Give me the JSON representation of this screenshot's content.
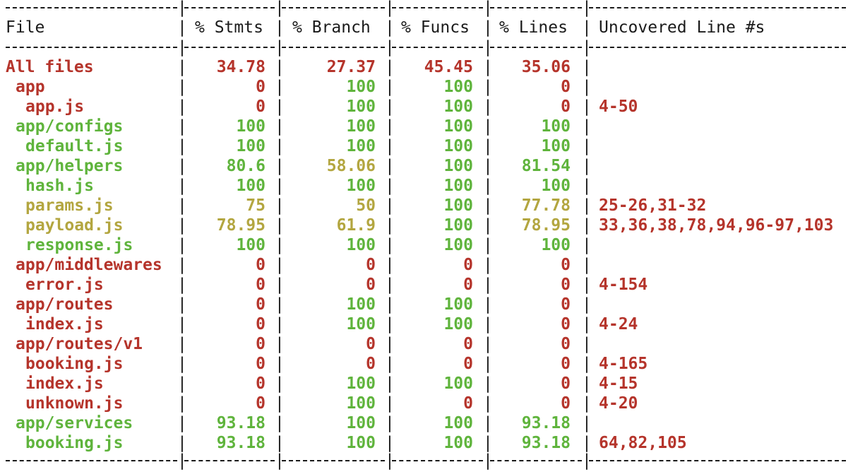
{
  "header": {
    "file": "File",
    "stmts": "% Stmts",
    "branch": "% Branch",
    "funcs": "% Funcs",
    "lines": "% Lines",
    "uncovered": "Uncovered Line #s"
  },
  "colors": {
    "red": "#b5342b",
    "green": "#5fb43c",
    "yellow": "#b3a640",
    "text": "#1a1a1a",
    "background": "#ffffff"
  },
  "rows": [
    {
      "file": "All files",
      "indent": 0,
      "file_color": "red",
      "stmts": "34.78",
      "stmts_color": "red",
      "branch": "27.37",
      "branch_color": "red",
      "funcs": "45.45",
      "funcs_color": "red",
      "lines": "35.06",
      "lines_color": "red",
      "uncovered": ""
    },
    {
      "file": "app",
      "indent": 1,
      "file_color": "red",
      "stmts": "0",
      "stmts_color": "red",
      "branch": "100",
      "branch_color": "green",
      "funcs": "100",
      "funcs_color": "green",
      "lines": "0",
      "lines_color": "red",
      "uncovered": ""
    },
    {
      "file": "app.js",
      "indent": 2,
      "file_color": "red",
      "stmts": "0",
      "stmts_color": "red",
      "branch": "100",
      "branch_color": "green",
      "funcs": "100",
      "funcs_color": "green",
      "lines": "0",
      "lines_color": "red",
      "uncovered": "4-50"
    },
    {
      "file": "app/configs",
      "indent": 1,
      "file_color": "green",
      "stmts": "100",
      "stmts_color": "green",
      "branch": "100",
      "branch_color": "green",
      "funcs": "100",
      "funcs_color": "green",
      "lines": "100",
      "lines_color": "green",
      "uncovered": ""
    },
    {
      "file": "default.js",
      "indent": 2,
      "file_color": "green",
      "stmts": "100",
      "stmts_color": "green",
      "branch": "100",
      "branch_color": "green",
      "funcs": "100",
      "funcs_color": "green",
      "lines": "100",
      "lines_color": "green",
      "uncovered": ""
    },
    {
      "file": "app/helpers",
      "indent": 1,
      "file_color": "green",
      "stmts": "80.6",
      "stmts_color": "green",
      "branch": "58.06",
      "branch_color": "yellow",
      "funcs": "100",
      "funcs_color": "green",
      "lines": "81.54",
      "lines_color": "green",
      "uncovered": ""
    },
    {
      "file": "hash.js",
      "indent": 2,
      "file_color": "green",
      "stmts": "100",
      "stmts_color": "green",
      "branch": "100",
      "branch_color": "green",
      "funcs": "100",
      "funcs_color": "green",
      "lines": "100",
      "lines_color": "green",
      "uncovered": ""
    },
    {
      "file": "params.js",
      "indent": 2,
      "file_color": "yellow",
      "stmts": "75",
      "stmts_color": "yellow",
      "branch": "50",
      "branch_color": "yellow",
      "funcs": "100",
      "funcs_color": "green",
      "lines": "77.78",
      "lines_color": "yellow",
      "uncovered": "25-26,31-32"
    },
    {
      "file": "payload.js",
      "indent": 2,
      "file_color": "yellow",
      "stmts": "78.95",
      "stmts_color": "yellow",
      "branch": "61.9",
      "branch_color": "yellow",
      "funcs": "100",
      "funcs_color": "green",
      "lines": "78.95",
      "lines_color": "yellow",
      "uncovered": "33,36,38,78,94,96-97,103"
    },
    {
      "file": "response.js",
      "indent": 2,
      "file_color": "green",
      "stmts": "100",
      "stmts_color": "green",
      "branch": "100",
      "branch_color": "green",
      "funcs": "100",
      "funcs_color": "green",
      "lines": "100",
      "lines_color": "green",
      "uncovered": ""
    },
    {
      "file": "app/middlewares",
      "indent": 1,
      "file_color": "red",
      "stmts": "0",
      "stmts_color": "red",
      "branch": "0",
      "branch_color": "red",
      "funcs": "0",
      "funcs_color": "red",
      "lines": "0",
      "lines_color": "red",
      "uncovered": ""
    },
    {
      "file": "error.js",
      "indent": 2,
      "file_color": "red",
      "stmts": "0",
      "stmts_color": "red",
      "branch": "0",
      "branch_color": "red",
      "funcs": "0",
      "funcs_color": "red",
      "lines": "0",
      "lines_color": "red",
      "uncovered": "4-154"
    },
    {
      "file": "app/routes",
      "indent": 1,
      "file_color": "red",
      "stmts": "0",
      "stmts_color": "red",
      "branch": "100",
      "branch_color": "green",
      "funcs": "100",
      "funcs_color": "green",
      "lines": "0",
      "lines_color": "red",
      "uncovered": ""
    },
    {
      "file": "index.js",
      "indent": 2,
      "file_color": "red",
      "stmts": "0",
      "stmts_color": "red",
      "branch": "100",
      "branch_color": "green",
      "funcs": "100",
      "funcs_color": "green",
      "lines": "0",
      "lines_color": "red",
      "uncovered": "4-24"
    },
    {
      "file": "app/routes/v1",
      "indent": 1,
      "file_color": "red",
      "stmts": "0",
      "stmts_color": "red",
      "branch": "0",
      "branch_color": "red",
      "funcs": "0",
      "funcs_color": "red",
      "lines": "0",
      "lines_color": "red",
      "uncovered": ""
    },
    {
      "file": "booking.js",
      "indent": 2,
      "file_color": "red",
      "stmts": "0",
      "stmts_color": "red",
      "branch": "0",
      "branch_color": "red",
      "funcs": "0",
      "funcs_color": "red",
      "lines": "0",
      "lines_color": "red",
      "uncovered": "4-165"
    },
    {
      "file": "index.js",
      "indent": 2,
      "file_color": "red",
      "stmts": "0",
      "stmts_color": "red",
      "branch": "100",
      "branch_color": "green",
      "funcs": "100",
      "funcs_color": "green",
      "lines": "0",
      "lines_color": "red",
      "uncovered": "4-15"
    },
    {
      "file": "unknown.js",
      "indent": 2,
      "file_color": "red",
      "stmts": "0",
      "stmts_color": "red",
      "branch": "100",
      "branch_color": "green",
      "funcs": "0",
      "funcs_color": "red",
      "lines": "0",
      "lines_color": "red",
      "uncovered": "4-20"
    },
    {
      "file": "app/services",
      "indent": 1,
      "file_color": "green",
      "stmts": "93.18",
      "stmts_color": "green",
      "branch": "100",
      "branch_color": "green",
      "funcs": "100",
      "funcs_color": "green",
      "lines": "93.18",
      "lines_color": "green",
      "uncovered": ""
    },
    {
      "file": "booking.js",
      "indent": 2,
      "file_color": "green",
      "stmts": "93.18",
      "stmts_color": "green",
      "branch": "100",
      "branch_color": "green",
      "funcs": "100",
      "funcs_color": "green",
      "lines": "93.18",
      "lines_color": "green",
      "uncovered": "64,82,105"
    }
  ]
}
